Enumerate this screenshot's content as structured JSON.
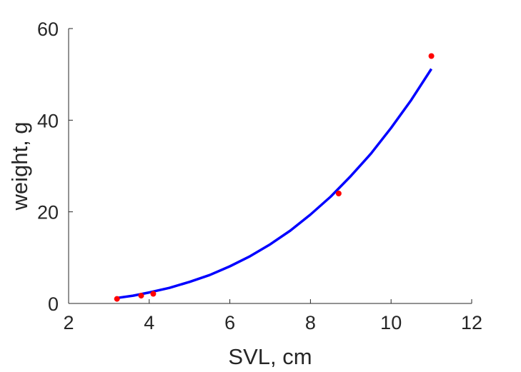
{
  "chart_data": {
    "type": "scatter",
    "title": "",
    "xlabel": "SVL, cm",
    "ylabel": "weight, g",
    "xlim": [
      2,
      12
    ],
    "ylim": [
      0,
      60
    ],
    "xticks": [
      2,
      4,
      6,
      8,
      10,
      12
    ],
    "yticks": [
      0,
      20,
      40,
      60
    ],
    "grid": false,
    "legend": "none",
    "series": [
      {
        "kind": "points",
        "color": "#ff0000",
        "x": [
          3.2,
          3.8,
          4.1,
          8.7,
          11.0
        ],
        "y": [
          1.0,
          1.7,
          2.1,
          24.0,
          54.0
        ]
      },
      {
        "kind": "curve",
        "color": "#0000ff",
        "x": [
          3.2,
          3.6,
          4.0,
          4.5,
          5.0,
          5.5,
          6.0,
          6.5,
          7.0,
          7.5,
          8.0,
          8.5,
          9.0,
          9.5,
          10.0,
          10.5,
          11.0
        ],
        "y": [
          1.2,
          1.7,
          2.4,
          3.4,
          4.7,
          6.2,
          8.1,
          10.3,
          12.9,
          15.9,
          19.4,
          23.3,
          27.8,
          32.7,
          38.3,
          44.4,
          51.2
        ]
      }
    ]
  }
}
